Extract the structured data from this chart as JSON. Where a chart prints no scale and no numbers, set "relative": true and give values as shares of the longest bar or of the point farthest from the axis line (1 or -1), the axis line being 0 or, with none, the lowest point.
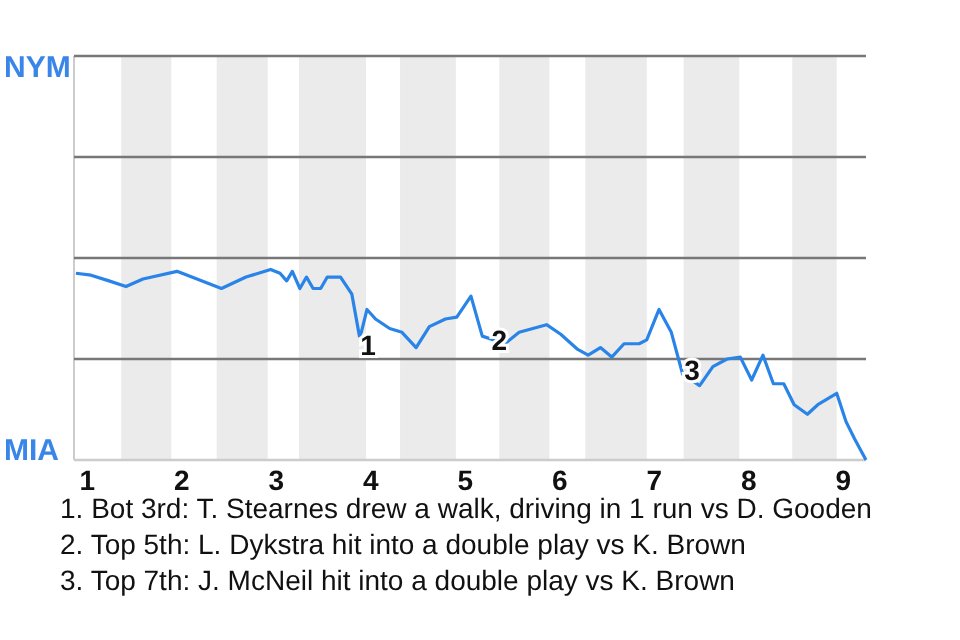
{
  "chart_data": {
    "type": "line",
    "relative": true,
    "xlim": [
      0.86,
      9.24
    ],
    "xticks": [
      1,
      2,
      3,
      4,
      5,
      6,
      7,
      8,
      9
    ],
    "marker": "none",
    "line_style": "solid",
    "ref_lines": [
      {
        "axis": "y",
        "value": 0.53,
        "label": null,
        "color": "#777777"
      },
      {
        "axis": "y",
        "value": 1.06,
        "label": null,
        "color": "#777777"
      },
      {
        "axis": "y",
        "value": 1.59,
        "label": null,
        "color": "#777777"
      },
      {
        "axis": "y",
        "value": 2.12,
        "label": "NYM",
        "color": "#777777"
      }
    ],
    "bands": [
      {
        "axis": "x",
        "from": 1.36,
        "to": 1.89,
        "color": "#ebebeb"
      },
      {
        "axis": "x",
        "from": 2.37,
        "to": 2.91,
        "color": "#ebebeb"
      },
      {
        "axis": "x",
        "from": 3.24,
        "to": 3.95,
        "color": "#ebebeb"
      },
      {
        "axis": "x",
        "from": 4.31,
        "to": 4.9,
        "color": "#ebebeb"
      },
      {
        "axis": "x",
        "from": 5.36,
        "to": 5.89,
        "color": "#ebebeb"
      },
      {
        "axis": "x",
        "from": 6.27,
        "to": 6.92,
        "color": "#ebebeb"
      },
      {
        "axis": "x",
        "from": 7.31,
        "to": 7.9,
        "color": "#ebebeb"
      },
      {
        "axis": "x",
        "from": 8.46,
        "to": 8.93,
        "color": "#ebebeb"
      }
    ],
    "series": [
      {
        "color": "#2a84e8",
        "x": [
          0.88,
          1.04,
          1.23,
          1.41,
          1.59,
          1.95,
          2.42,
          2.68,
          2.94,
          3.04,
          3.11,
          3.17,
          3.25,
          3.32,
          3.39,
          3.47,
          3.54,
          3.68,
          3.8,
          3.88,
          3.9,
          3.96,
          4.05,
          4.2,
          4.33,
          4.48,
          4.62,
          4.79,
          4.91,
          5.06,
          5.18,
          5.42,
          5.57,
          5.86,
          6.01,
          6.19,
          6.3,
          6.43,
          6.55,
          6.68,
          6.84,
          6.92,
          7.05,
          7.18,
          7.3,
          7.48,
          7.62,
          7.77,
          7.91,
          8.03,
          8.15,
          8.26,
          8.37,
          8.48,
          8.62,
          8.73,
          8.93,
          9.03,
          9.12,
          9.24
        ],
        "values": [
          0.98,
          0.97,
          0.94,
          0.91,
          0.95,
          0.99,
          0.9,
          0.96,
          1,
          0.98,
          0.94,
          0.99,
          0.9,
          0.96,
          0.9,
          0.9,
          0.96,
          0.96,
          0.87,
          0.65,
          0.67,
          0.79,
          0.74,
          0.69,
          0.67,
          0.59,
          0.7,
          0.74,
          0.75,
          0.86,
          0.65,
          0.61,
          0.67,
          0.71,
          0.66,
          0.58,
          0.55,
          0.59,
          0.54,
          0.61,
          0.61,
          0.63,
          0.79,
          0.67,
          0.45,
          0.39,
          0.49,
          0.53,
          0.54,
          0.42,
          0.55,
          0.4,
          0.4,
          0.29,
          0.24,
          0.29,
          0.35,
          0.2,
          0.11,
          0
        ]
      }
    ],
    "annotations": [
      "MIA",
      {
        "text": "1",
        "x": 3.97,
        "y": 0.6
      },
      {
        "text": "2",
        "x": 5.36,
        "y": 0.63
      },
      {
        "text": "3",
        "x": 7.4,
        "y": 0.47
      },
      "1. Bot 3rd: T. Stearnes drew a walk, driving in 1 run vs D. Gooden",
      "2. Top 5th: L. Dykstra hit into a double play vs K. Brown",
      "3. Top 7th: J. McNeil hit into a double play vs K. Brown"
    ]
  }
}
